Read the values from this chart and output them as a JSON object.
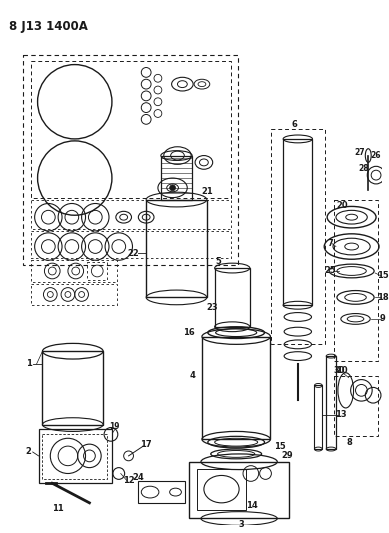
{
  "title": "8 J13 1400A",
  "bg_color": "#ffffff",
  "line_color": "#1a1a1a",
  "fig_width": 3.89,
  "fig_height": 5.33,
  "dpi": 100
}
